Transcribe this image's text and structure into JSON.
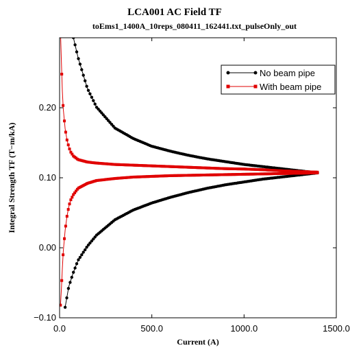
{
  "chart_data": {
    "type": "line",
    "title": "LCA001 AC Field TF",
    "subtitle": "toEms1_1400A_10reps_080411_162441.txt_pulseOnly_out",
    "xlabel": "Current (A)",
    "ylabel": "Integral Strength TF (T−m/kA)",
    "xlim": [
      0,
      1500
    ],
    "ylim": [
      -0.1,
      0.3
    ],
    "xticks": [
      0,
      500,
      1000,
      1500
    ],
    "xtick_labels": [
      "0.0",
      "500.0",
      "1000.0",
      "1500.0"
    ],
    "yticks": [
      -0.1,
      0.0,
      0.1,
      0.2
    ],
    "ytick_labels": [
      "−0.10",
      "0.00",
      "0.10",
      "0.20"
    ],
    "grid": false,
    "legend_position": "top-right",
    "series": [
      {
        "name": "No beam pipe",
        "color": "#000000",
        "marker": "circle",
        "branches": [
          {
            "x": [
              75,
              100,
              150,
              200,
              300,
              400,
              500,
              600,
              700,
              800,
              900,
              1000,
              1100,
              1200,
              1300,
              1400
            ],
            "y": [
              0.3,
              0.272,
              0.228,
              0.201,
              0.171,
              0.156,
              0.145,
              0.138,
              0.132,
              0.127,
              0.123,
              0.119,
              0.116,
              0.113,
              0.11,
              0.107
            ]
          },
          {
            "x": [
              30,
              50,
              75,
              100,
              150,
              200,
              300,
              400,
              500,
              600,
              700,
              800,
              900,
              1000,
              1100,
              1200,
              1300,
              1400
            ],
            "y": [
              -0.085,
              -0.055,
              -0.035,
              -0.018,
              0.002,
              0.018,
              0.04,
              0.054,
              0.064,
              0.072,
              0.079,
              0.085,
              0.09,
              0.094,
              0.098,
              0.101,
              0.104,
              0.107
            ]
          }
        ]
      },
      {
        "name": "With beam pipe",
        "color": "#e00000",
        "marker": "square",
        "branches": [
          {
            "x": [
              5,
              10,
              15,
              20,
              30,
              40,
              50,
              60,
              75,
              100,
              150,
              200,
              300,
              400,
              500,
              600,
              700,
              800,
              900,
              1000,
              1100,
              1200,
              1300,
              1400
            ],
            "y": [
              0.31,
              0.264,
              0.224,
              0.198,
              0.17,
              0.154,
              0.144,
              0.137,
              0.131,
              0.126,
              0.1225,
              0.121,
              0.119,
              0.118,
              0.117,
              0.116,
              0.115,
              0.114,
              0.113,
              0.1125,
              0.1115,
              0.11,
              0.109,
              0.108
            ]
          },
          {
            "x": [
              5,
              10,
              15,
              20,
              30,
              40,
              50,
              60,
              75,
              100,
              150,
              200,
              300,
              400,
              500,
              600,
              700,
              800,
              900,
              1000,
              1100,
              1200,
              1300,
              1400
            ],
            "y": [
              -0.082,
              -0.058,
              -0.03,
              -0.005,
              0.025,
              0.045,
              0.059,
              0.068,
              0.076,
              0.085,
              0.092,
              0.096,
              0.099,
              0.101,
              0.102,
              0.103,
              0.1035,
              0.104,
              0.1045,
              0.105,
              0.1055,
              0.106,
              0.1065,
              0.107
            ]
          }
        ]
      }
    ]
  }
}
